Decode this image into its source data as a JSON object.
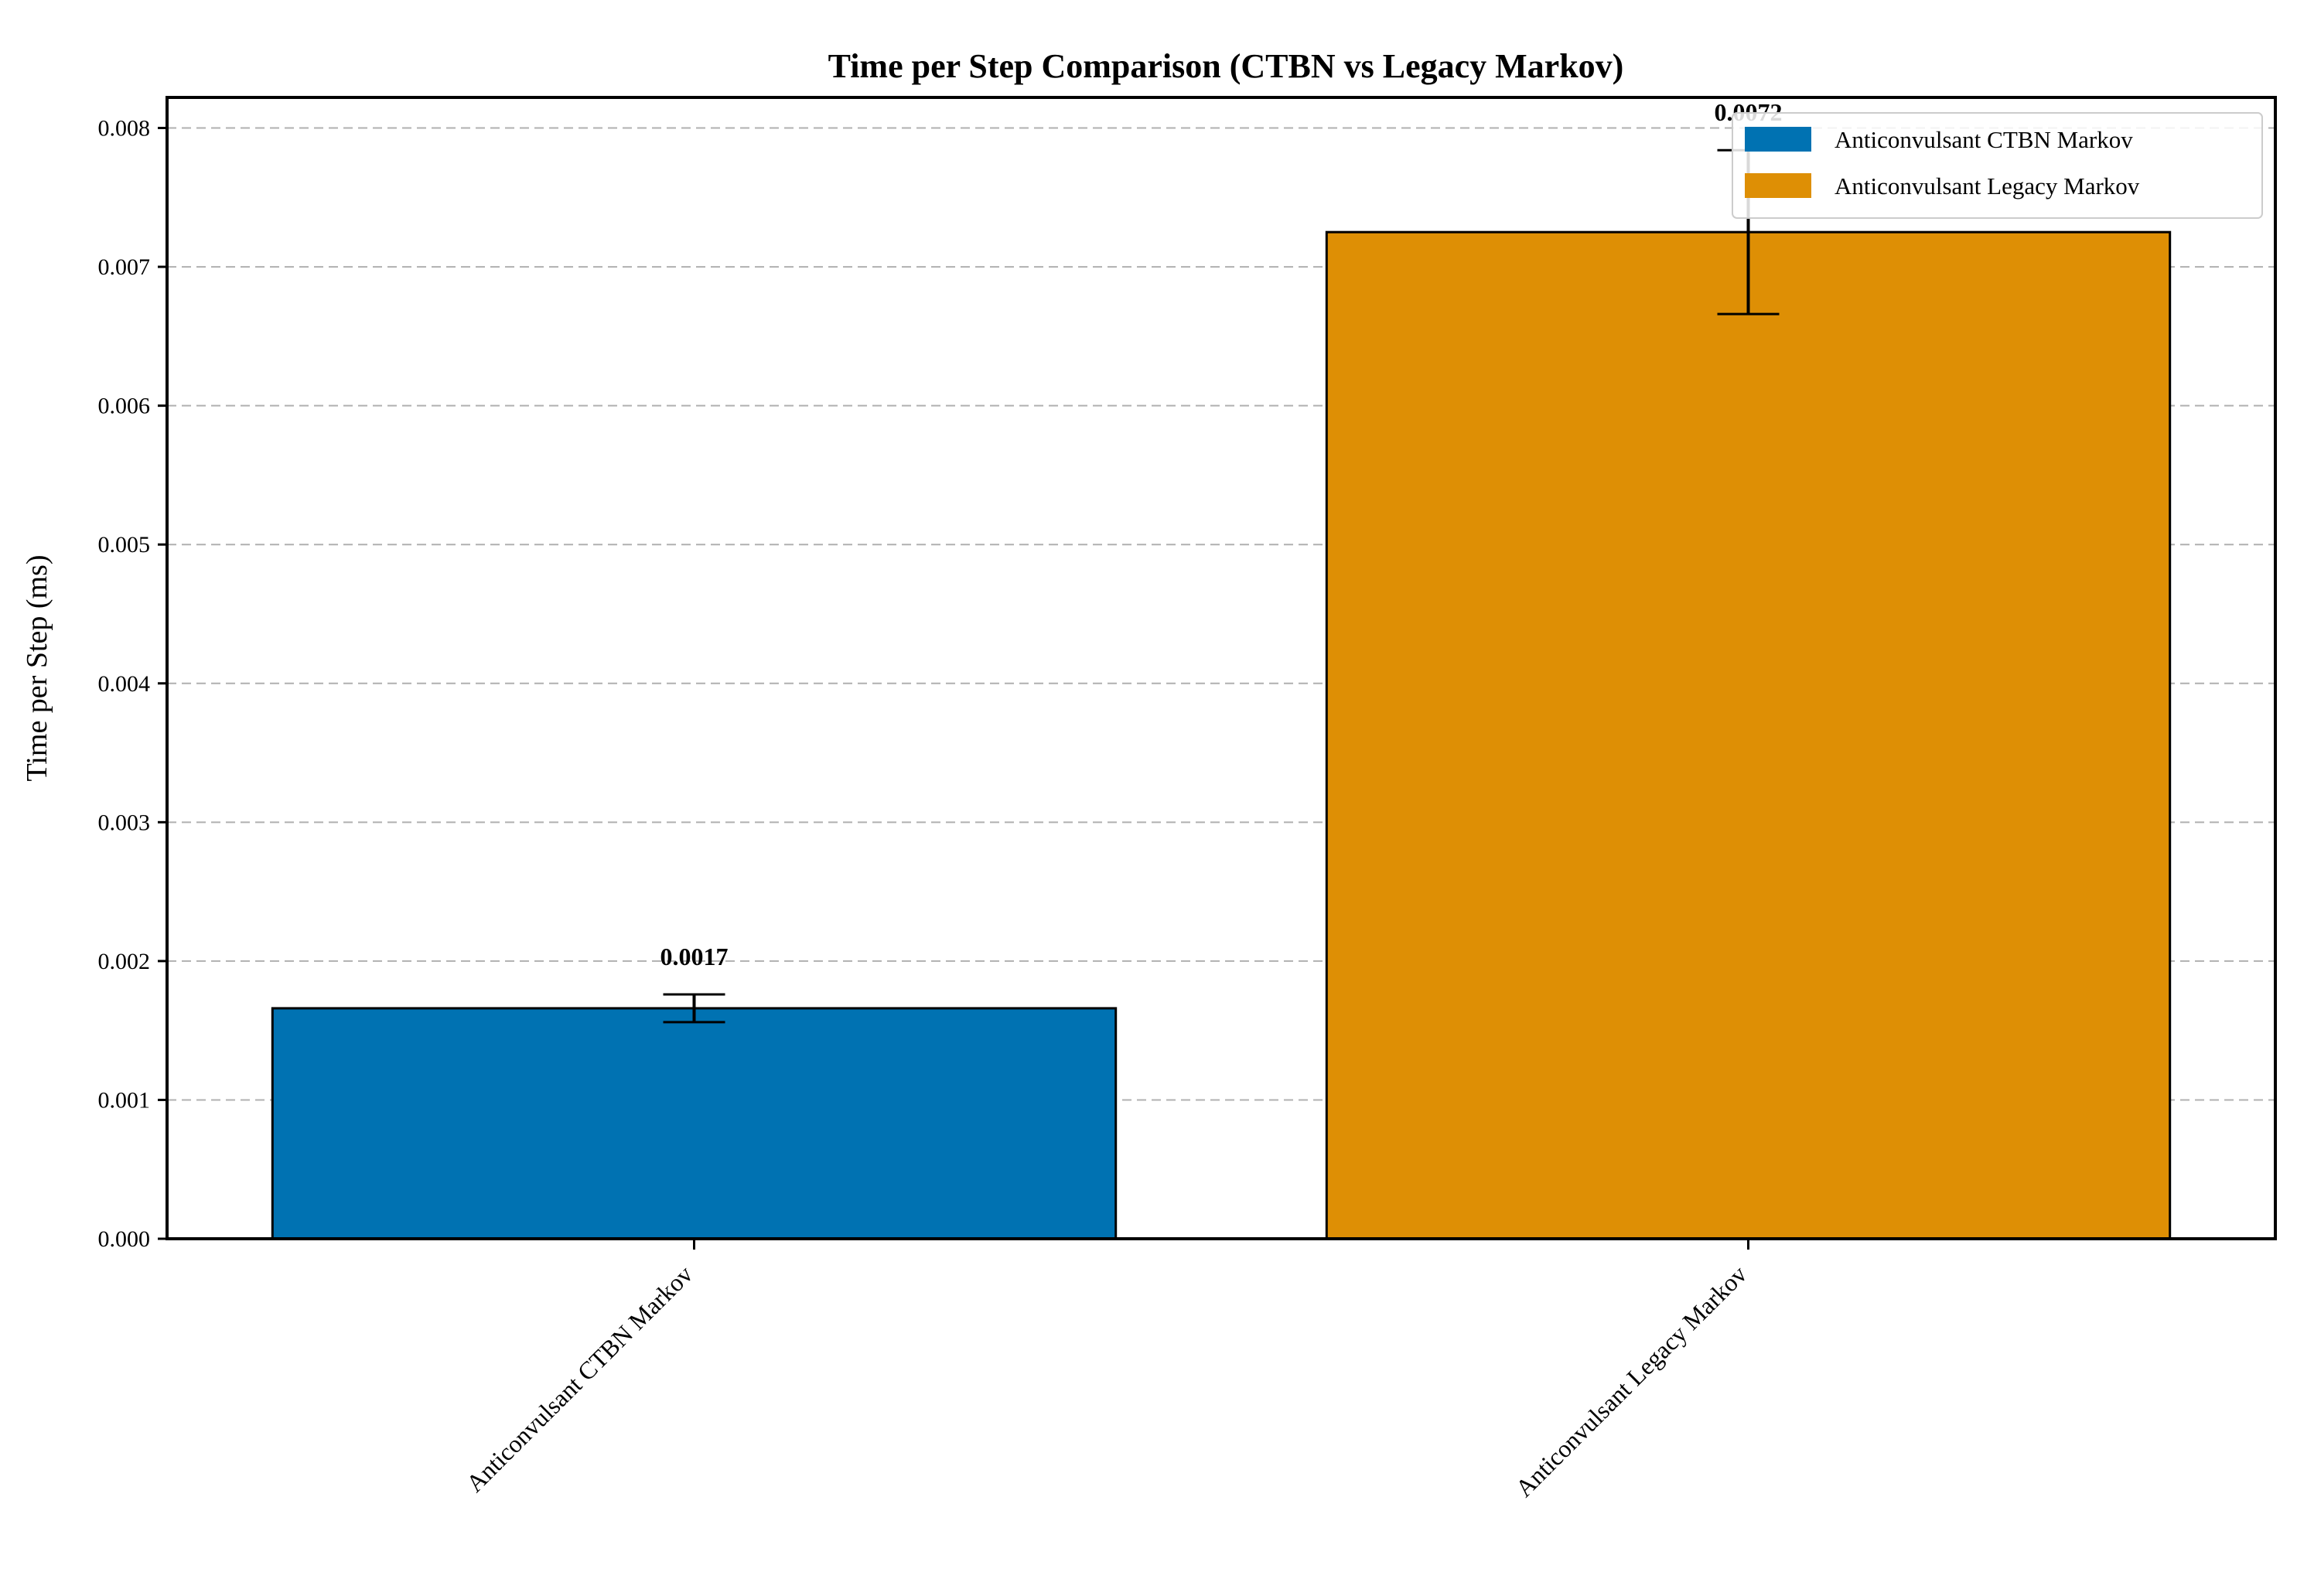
{
  "chart_data": {
    "type": "bar",
    "title": "Time per Step Comparison (CTBN vs Legacy Markov)",
    "xlabel": "",
    "ylabel": "Time per Step (ms)",
    "categories": [
      "Anticonvulsant CTBN Markov",
      "Anticonvulsant Legacy Markov"
    ],
    "values": [
      0.00166,
      0.00725
    ],
    "errors": [
      0.0001,
      0.00059
    ],
    "data_labels": [
      "0.0017",
      "0.0072"
    ],
    "colors": [
      "#0072b2",
      "#de8f05"
    ],
    "ylim": [
      0,
      0.00822
    ],
    "yticks": [
      "0.000",
      "0.001",
      "0.002",
      "0.003",
      "0.004",
      "0.005",
      "0.006",
      "0.007",
      "0.008"
    ],
    "ytick_values": [
      0,
      0.001,
      0.002,
      0.003,
      0.004,
      0.005,
      0.006,
      0.007,
      0.008
    ],
    "grid": "y-dashed",
    "legend": {
      "position": "top-right",
      "entries": [
        "Anticonvulsant CTBN Markov",
        "Anticonvulsant Legacy Markov"
      ]
    }
  }
}
